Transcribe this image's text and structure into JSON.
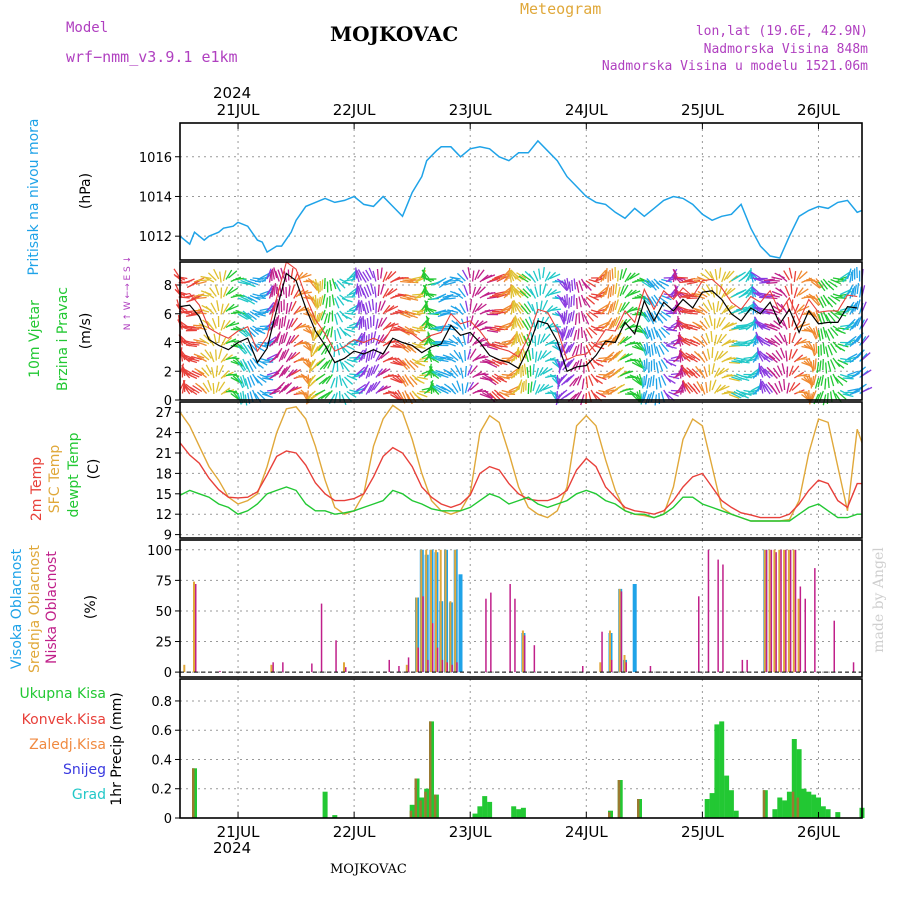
{
  "header": {
    "model_label": "Model",
    "model_name": "wrf−nmm_v3.9.1 e1km",
    "station": "MOJKOVAC",
    "meteogram": "Meteogram",
    "lonlat": "lon,lat (19.6E, 42.9N)",
    "elevation": "Nadmorska Visina 848m",
    "model_elevation": "Nadmorska Visina u modelu 1521.06m",
    "year": "2024",
    "watermark": "made by Angel",
    "footer_station": "MOJKOVAC"
  },
  "colors": {
    "pressure": "#1fa3e8",
    "temp2m": "#e8403a",
    "sfc": "#e0a83a",
    "dewpt": "#22c833",
    "high_cloud": "#1fa3e8",
    "mid_cloud": "#e0a83a",
    "low_cloud": "#c0208a",
    "total_precip": "#22c833",
    "conv_precip": "#e8403a",
    "snow": "#3a3ae0",
    "grad": "#22c8c8",
    "magenta_label": "#b040c0"
  },
  "chart_data": {
    "type": "line",
    "x_ticks": [
      "21JUL",
      "22JUL",
      "23JUL",
      "24JUL",
      "25JUL",
      "26JUL"
    ],
    "x_range_hours": [
      0,
      141
    ],
    "pressure": {
      "ylabel_name": "Pritisak na nivou mora",
      "unit": "(hPa)",
      "ylim": [
        1010.8,
        1017.7
      ],
      "ticks": [
        1012,
        1014,
        1016
      ],
      "x": [
        0,
        2,
        3,
        5,
        6,
        8,
        9,
        11,
        12,
        14,
        16,
        17,
        18,
        20,
        21,
        23,
        24,
        26,
        28,
        30,
        32,
        34,
        36,
        38,
        40,
        42,
        44,
        46,
        48,
        50,
        51,
        53,
        54,
        56,
        58,
        60,
        62,
        64,
        66,
        68,
        70,
        72,
        74,
        76,
        78,
        80,
        82,
        84,
        86,
        88,
        90,
        92,
        94,
        96,
        98,
        100,
        102,
        104,
        106,
        108,
        110,
        112,
        114,
        116,
        118,
        120,
        122,
        124,
        126,
        128,
        130,
        132,
        134,
        136,
        138,
        140,
        141
      ],
      "values": [
        1012.0,
        1011.6,
        1012.2,
        1011.8,
        1012.0,
        1012.2,
        1012.4,
        1012.5,
        1012.7,
        1012.5,
        1011.8,
        1011.7,
        1011.2,
        1011.5,
        1011.5,
        1012.2,
        1012.8,
        1013.5,
        1013.7,
        1013.9,
        1013.7,
        1013.8,
        1014.0,
        1013.6,
        1013.5,
        1014.0,
        1013.5,
        1013.0,
        1014.2,
        1015.0,
        1015.8,
        1016.3,
        1016.5,
        1016.5,
        1016.0,
        1016.4,
        1016.5,
        1016.4,
        1016.0,
        1015.8,
        1016.2,
        1016.2,
        1016.8,
        1016.3,
        1015.8,
        1015.0,
        1014.5,
        1014.0,
        1013.7,
        1013.6,
        1013.2,
        1012.9,
        1013.4,
        1013.0,
        1013.4,
        1013.8,
        1014.0,
        1013.9,
        1013.6,
        1013.1,
        1012.8,
        1013.0,
        1013.1,
        1013.6,
        1012.4,
        1011.5,
        1011.0,
        1010.9,
        1012.0,
        1013.0,
        1013.3,
        1013.5,
        1013.4,
        1013.7,
        1013.8,
        1013.2,
        1013.3
      ]
    },
    "wind": {
      "ylabel_name": "10m Vjetar",
      "ylabel_name2": "Brzina i Pravac",
      "unit": "(m/s)",
      "compass": "N ↑ W ←→ E S ↓",
      "ylim": [
        0,
        9.6
      ],
      "ticks": [
        0,
        2,
        4,
        6,
        8
      ],
      "x": [
        0,
        2,
        4,
        6,
        8,
        10,
        12,
        14,
        16,
        18,
        20,
        22,
        24,
        26,
        28,
        30,
        32,
        34,
        36,
        38,
        40,
        42,
        44,
        46,
        48,
        50,
        52,
        54,
        56,
        58,
        60,
        62,
        64,
        66,
        68,
        70,
        72,
        74,
        76,
        78,
        80,
        82,
        84,
        86,
        88,
        90,
        92,
        94,
        96,
        98,
        100,
        102,
        104,
        106,
        108,
        110,
        112,
        114,
        116,
        118,
        120,
        122,
        124,
        126,
        128,
        130,
        132,
        134,
        136,
        138,
        140
      ],
      "speed": [
        6.5,
        6.6,
        5.8,
        4.2,
        3.8,
        3.5,
        4.0,
        4.3,
        2.6,
        3.6,
        6.3,
        8.8,
        8.3,
        6.4,
        4.8,
        3.8,
        2.6,
        2.9,
        3.4,
        3.2,
        3.5,
        3.2,
        4.3,
        4.0,
        3.8,
        3.3,
        3.7,
        3.9,
        5.2,
        4.5,
        4.7,
        4.0,
        3.1,
        2.8,
        2.6,
        2.2,
        3.6,
        5.5,
        5.3,
        4.1,
        2.0,
        2.3,
        2.4,
        3.1,
        4.1,
        4.0,
        5.4,
        4.6,
        6.9,
        5.5,
        6.8,
        6.2,
        7.0,
        6.4,
        7.5,
        7.6,
        7.0,
        6.0,
        5.5,
        6.4,
        6.0,
        6.8,
        5.3,
        6.3,
        4.7,
        6.2,
        5.3,
        5.4,
        5.4,
        6.5,
        6.4
      ]
    },
    "temperature": {
      "ylabel_name1": "2m Temp",
      "ylabel_name2": "SFC Temp",
      "ylabel_name3": "dewpt Temp",
      "unit": "(C)",
      "ylim": [
        8.5,
        28.5
      ],
      "ticks": [
        9,
        12,
        15,
        18,
        21,
        24,
        27
      ],
      "x": [
        0,
        2,
        4,
        6,
        8,
        10,
        12,
        14,
        16,
        18,
        20,
        22,
        24,
        26,
        28,
        30,
        32,
        34,
        36,
        38,
        40,
        42,
        44,
        46,
        48,
        50,
        52,
        54,
        56,
        58,
        60,
        62,
        64,
        66,
        68,
        70,
        72,
        74,
        76,
        78,
        80,
        82,
        84,
        86,
        88,
        90,
        92,
        94,
        96,
        98,
        100,
        102,
        104,
        106,
        108,
        110,
        112,
        114,
        116,
        118,
        120,
        122,
        124,
        126,
        128,
        130,
        132,
        134,
        136,
        138,
        140,
        141
      ],
      "t2m": [
        22.5,
        20.7,
        19.5,
        17.3,
        15.6,
        14.5,
        14.4,
        14.5,
        15.3,
        17.8,
        20.5,
        21.3,
        21.0,
        19.2,
        16.6,
        15.0,
        14.0,
        14.0,
        14.3,
        15.0,
        17.5,
        20.5,
        21.8,
        21.0,
        19.0,
        16.0,
        14.5,
        13.5,
        13.0,
        13.5,
        14.8,
        18.0,
        19.0,
        18.5,
        16.5,
        15.0,
        14.2,
        14.0,
        14.0,
        14.5,
        15.5,
        18.5,
        20.2,
        19.0,
        16.0,
        14.5,
        13.0,
        12.5,
        12.3,
        12.0,
        12.5,
        14.0,
        16.0,
        17.5,
        18.0,
        16.0,
        14.0,
        13.0,
        12.2,
        11.9,
        11.5,
        11.5,
        11.5,
        12.0,
        13.5,
        15.5,
        17.0,
        16.5,
        14.0,
        13.0,
        16.5,
        16.5
      ],
      "sfc": [
        27.0,
        25.0,
        22.0,
        19.0,
        17.0,
        14.5,
        13.5,
        14.0,
        15.0,
        19.0,
        24.0,
        27.5,
        27.8,
        26.0,
        22.0,
        17.0,
        13.0,
        12.0,
        12.5,
        15.0,
        22.0,
        26.0,
        28.0,
        27.0,
        23.0,
        18.0,
        14.0,
        12.5,
        12.0,
        12.5,
        15.0,
        24.0,
        26.5,
        25.5,
        21.0,
        16.0,
        13.0,
        12.0,
        11.5,
        12.5,
        16.0,
        25.0,
        26.5,
        25.0,
        20.0,
        15.5,
        12.5,
        12.0,
        11.8,
        11.5,
        12.0,
        16.0,
        23.0,
        26.0,
        25.0,
        19.0,
        13.0,
        12.0,
        11.5,
        11.0,
        11.0,
        11.0,
        11.0,
        11.2,
        14.0,
        21.0,
        26.0,
        25.5,
        19.0,
        12.5,
        24.5,
        22.5
      ],
      "dewpt": [
        14.8,
        15.5,
        15.0,
        14.5,
        13.5,
        13.0,
        12.0,
        12.5,
        13.5,
        15.0,
        15.5,
        16.0,
        15.5,
        13.5,
        12.5,
        12.5,
        12.0,
        12.2,
        12.5,
        13.0,
        13.5,
        14.0,
        15.5,
        15.0,
        14.0,
        13.5,
        12.8,
        12.5,
        12.5,
        12.5,
        13.0,
        14.0,
        15.0,
        14.5,
        13.5,
        14.0,
        14.5,
        13.5,
        13.0,
        13.5,
        14.0,
        15.0,
        15.5,
        15.0,
        14.0,
        13.5,
        12.5,
        12.0,
        12.0,
        11.5,
        12.0,
        13.0,
        14.5,
        14.5,
        13.5,
        13.0,
        12.5,
        12.0,
        11.5,
        11.0,
        11.0,
        11.0,
        11.0,
        11.0,
        12.0,
        13.0,
        13.5,
        12.5,
        11.5,
        11.5,
        12.0,
        12.0
      ]
    },
    "cloud": {
      "ylabel_name1": "Visoka Oblacnost",
      "ylabel_name2": "Srednja Oblacnost",
      "ylabel_name3": "Niska Oblacnost",
      "unit": "(%)",
      "ylim": [
        -4,
        108
      ],
      "ticks": [
        0,
        25,
        50,
        75,
        100
      ],
      "bars": [
        {
          "t": 1,
          "h": 0,
          "m": 6,
          "l": 0
        },
        {
          "t": 3,
          "h": 0,
          "m": 74,
          "l": 72
        },
        {
          "t": 8,
          "h": 0,
          "m": 0,
          "l": 1
        },
        {
          "t": 19,
          "h": 0,
          "m": 6,
          "l": 8
        },
        {
          "t": 21,
          "h": 0,
          "m": 0,
          "l": 8
        },
        {
          "t": 27,
          "h": 0,
          "m": 0,
          "l": 7
        },
        {
          "t": 29,
          "h": 0,
          "m": 0,
          "l": 56
        },
        {
          "t": 32,
          "h": 0,
          "m": 0,
          "l": 26
        },
        {
          "t": 34,
          "h": 0,
          "m": 8,
          "l": 4
        },
        {
          "t": 43,
          "h": 0,
          "m": 0,
          "l": 10
        },
        {
          "t": 45,
          "h": 0,
          "m": 0,
          "l": 5
        },
        {
          "t": 47,
          "h": 0,
          "m": 6,
          "l": 12
        },
        {
          "t": 49,
          "h": 61,
          "m": 61,
          "l": 20
        },
        {
          "t": 50,
          "h": 100,
          "m": 100,
          "l": 62
        },
        {
          "t": 51,
          "h": 96,
          "m": 100,
          "l": 10
        },
        {
          "t": 52,
          "h": 100,
          "m": 100,
          "l": 40
        },
        {
          "t": 53,
          "h": 98,
          "m": 100,
          "l": 20
        },
        {
          "t": 54,
          "h": 58,
          "m": 100,
          "l": 10
        },
        {
          "t": 55,
          "h": 100,
          "m": 100,
          "l": 8
        },
        {
          "t": 56,
          "h": 57,
          "m": 58,
          "l": 6
        },
        {
          "t": 57,
          "h": 100,
          "m": 100,
          "l": 8
        },
        {
          "t": 58,
          "h": 80,
          "m": 0,
          "l": 0
        },
        {
          "t": 63,
          "h": 0,
          "m": 0,
          "l": 60
        },
        {
          "t": 64,
          "h": 0,
          "m": 0,
          "l": 65
        },
        {
          "t": 68,
          "h": 0,
          "m": 0,
          "l": 72
        },
        {
          "t": 69,
          "h": 0,
          "m": 0,
          "l": 60
        },
        {
          "t": 71,
          "h": 32,
          "m": 34,
          "l": 30
        },
        {
          "t": 73,
          "h": 0,
          "m": 0,
          "l": 22
        },
        {
          "t": 83,
          "h": 0,
          "m": 0,
          "l": 5
        },
        {
          "t": 87,
          "h": 0,
          "m": 8,
          "l": 33
        },
        {
          "t": 89,
          "h": 32,
          "m": 34,
          "l": 10
        },
        {
          "t": 91,
          "h": 68,
          "m": 68,
          "l": 66
        },
        {
          "t": 92,
          "h": 10,
          "m": 14,
          "l": 8
        },
        {
          "t": 94,
          "h": 72,
          "m": 0,
          "l": 0
        },
        {
          "t": 97,
          "h": 0,
          "m": 0,
          "l": 5
        },
        {
          "t": 107,
          "h": 0,
          "m": 0,
          "l": 62
        },
        {
          "t": 109,
          "h": 0,
          "m": 0,
          "l": 100
        },
        {
          "t": 111,
          "h": 0,
          "m": 0,
          "l": 92
        },
        {
          "t": 112,
          "h": 0,
          "m": 0,
          "l": 88
        },
        {
          "t": 116,
          "h": 0,
          "m": 0,
          "l": 10
        },
        {
          "t": 117,
          "h": 0,
          "m": 0,
          "l": 10
        },
        {
          "t": 121,
          "h": 100,
          "m": 100,
          "l": 100
        },
        {
          "t": 122,
          "h": 0,
          "m": 100,
          "l": 100
        },
        {
          "t": 123,
          "h": 0,
          "m": 100,
          "l": 98
        },
        {
          "t": 124,
          "h": 0,
          "m": 100,
          "l": 100
        },
        {
          "t": 125,
          "h": 0,
          "m": 100,
          "l": 100
        },
        {
          "t": 126,
          "h": 0,
          "m": 100,
          "l": 100
        },
        {
          "t": 127,
          "h": 0,
          "m": 100,
          "l": 100
        },
        {
          "t": 128,
          "h": 0,
          "m": 60,
          "l": 70
        },
        {
          "t": 129,
          "h": 0,
          "m": 0,
          "l": 60
        },
        {
          "t": 131,
          "h": 0,
          "m": 0,
          "l": 85
        },
        {
          "t": 135,
          "h": 0,
          "m": 0,
          "l": 42
        },
        {
          "t": 139,
          "h": 0,
          "m": 0,
          "l": 8
        }
      ]
    },
    "precip": {
      "legend1": "Ukupna Kisa",
      "legend2": "Konvek.Kisa",
      "legend3": "Zaledj.Kisa",
      "legend4": "Snijeg",
      "legend5": "Grad",
      "ylabel": "1hr Precip (mm)",
      "ylim": [
        0,
        0.95
      ],
      "ticks": [
        0,
        0.2,
        0.4,
        0.6,
        0.8
      ],
      "tick_labels": [
        "0",
        "0.2",
        "0.4",
        "0.6",
        "0.8"
      ],
      "bars": [
        {
          "t": 3,
          "total": 0.34,
          "conv": 0.34
        },
        {
          "t": 30,
          "total": 0.18,
          "conv": 0.0
        },
        {
          "t": 32,
          "total": 0.02,
          "conv": 0.0
        },
        {
          "t": 48,
          "total": 0.09,
          "conv": 0.05
        },
        {
          "t": 49,
          "total": 0.27,
          "conv": 0.27
        },
        {
          "t": 50,
          "total": 0.14,
          "conv": 0.12
        },
        {
          "t": 51,
          "total": 0.2,
          "conv": 0.18
        },
        {
          "t": 52,
          "total": 0.66,
          "conv": 0.66
        },
        {
          "t": 53,
          "total": 0.16,
          "conv": 0.16
        },
        {
          "t": 61,
          "total": 0.03,
          "conv": 0.0
        },
        {
          "t": 62,
          "total": 0.08,
          "conv": 0.0
        },
        {
          "t": 63,
          "total": 0.15,
          "conv": 0.0
        },
        {
          "t": 64,
          "total": 0.11,
          "conv": 0.0
        },
        {
          "t": 69,
          "total": 0.08,
          "conv": 0.0
        },
        {
          "t": 70,
          "total": 0.06,
          "conv": 0.0
        },
        {
          "t": 71,
          "total": 0.07,
          "conv": 0.0
        },
        {
          "t": 89,
          "total": 0.05,
          "conv": 0.04
        },
        {
          "t": 91,
          "total": 0.26,
          "conv": 0.26
        },
        {
          "t": 95,
          "total": 0.13,
          "conv": 0.13
        },
        {
          "t": 109,
          "total": 0.13,
          "conv": 0.0
        },
        {
          "t": 110,
          "total": 0.17,
          "conv": 0.0
        },
        {
          "t": 111,
          "total": 0.64,
          "conv": 0.0
        },
        {
          "t": 112,
          "total": 0.66,
          "conv": 0.0
        },
        {
          "t": 113,
          "total": 0.29,
          "conv": 0.0
        },
        {
          "t": 114,
          "total": 0.19,
          "conv": 0.0
        },
        {
          "t": 115,
          "total": 0.05,
          "conv": 0.0
        },
        {
          "t": 121,
          "total": 0.19,
          "conv": 0.19
        },
        {
          "t": 123,
          "total": 0.06,
          "conv": 0.0
        },
        {
          "t": 124,
          "total": 0.14,
          "conv": 0.0
        },
        {
          "t": 125,
          "total": 0.12,
          "conv": 0.0
        },
        {
          "t": 126,
          "total": 0.18,
          "conv": 0.0
        },
        {
          "t": 127,
          "total": 0.54,
          "conv": 0.18
        },
        {
          "t": 128,
          "total": 0.47,
          "conv": 0.14
        },
        {
          "t": 129,
          "total": 0.2,
          "conv": 0.0
        },
        {
          "t": 130,
          "total": 0.18,
          "conv": 0.0
        },
        {
          "t": 131,
          "total": 0.16,
          "conv": 0.0
        },
        {
          "t": 132,
          "total": 0.14,
          "conv": 0.0
        },
        {
          "t": 133,
          "total": 0.08,
          "conv": 0.0
        },
        {
          "t": 134,
          "total": 0.06,
          "conv": 0.0
        },
        {
          "t": 136,
          "total": 0.04,
          "conv": 0.0
        },
        {
          "t": 141,
          "total": 0.07,
          "conv": 0.0
        }
      ]
    }
  }
}
